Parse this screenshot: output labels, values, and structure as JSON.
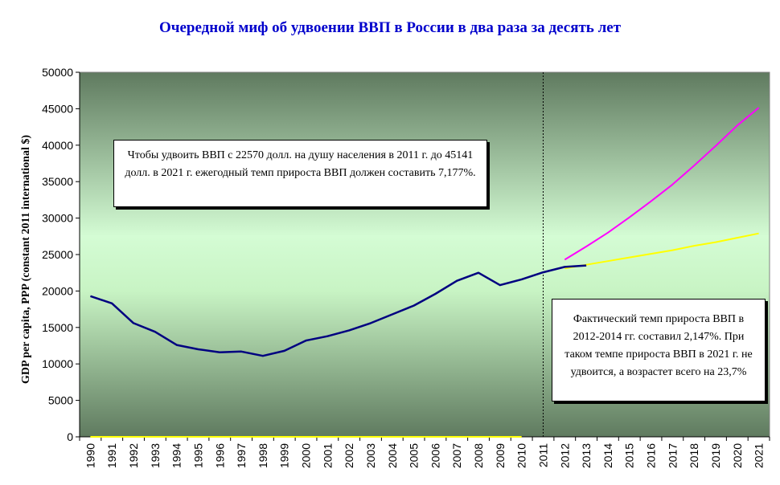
{
  "title": "Очередной миф об удвоении ВВП в России в два раза за десять лет",
  "annotations": {
    "doubling_note": "Чтобы удвоить ВВП  с 22570 долл. на душу населения в 2011 г. до 45141 долл. в 2021 г. ежегодный темп прироста ВВП должен составить 7,177%.",
    "actual_note": "Фактический темп прироста ВВП в 2012-2014 гг. составил 2,147%. При таком темпе прироста ВВП в 2021 г. не удвоится, а возрастет всего на 23,7%"
  },
  "colors": {
    "actual": "#000080",
    "doubling_path": "#ff00ff",
    "actual_rate_path": "#ffff00",
    "marker_line": "#000000"
  },
  "chart_data": {
    "type": "line",
    "title": "Очередной миф об удвоении ВВП в России в два раза за десять лет",
    "ylabel": "GDP per capita, PPP (constant 2011 international $)",
    "xlabel": "",
    "ylim": [
      0,
      50000
    ],
    "yticks": [
      0,
      5000,
      10000,
      15000,
      20000,
      25000,
      30000,
      35000,
      40000,
      45000,
      50000
    ],
    "categories": [
      1990,
      1991,
      1992,
      1993,
      1994,
      1995,
      1996,
      1997,
      1998,
      1999,
      2000,
      2001,
      2002,
      2003,
      2004,
      2005,
      2006,
      2007,
      2008,
      2009,
      2010,
      2011,
      2012,
      2013,
      2014,
      2015,
      2016,
      2017,
      2018,
      2019,
      2020,
      2021
    ],
    "vertical_marker_x": 2011,
    "grid": false,
    "series": [
      {
        "x": [
          1990,
          1991,
          1992,
          1993,
          1994,
          1995,
          1996,
          1997,
          1998,
          1999,
          2000,
          2001,
          2002,
          2003,
          2004,
          2005,
          2006,
          2007,
          2008,
          2009,
          2010,
          2011,
          2012,
          2013
        ],
        "y": [
          19300,
          18300,
          15600,
          14400,
          12600,
          12000,
          11600,
          11700,
          11100,
          11800,
          13200,
          13800,
          14600,
          15600,
          16800,
          18000,
          19600,
          21400,
          22500,
          20800,
          21600,
          22570,
          23300,
          23500
        ]
      },
      {
        "x": [
          2012,
          2013,
          2014,
          2015,
          2016,
          2017,
          2018,
          2019,
          2020,
          2021
        ],
        "y": [
          24300,
          26100,
          28000,
          30100,
          32300,
          34600,
          37200,
          39900,
          42700,
          45141
        ]
      },
      {
        "x": [
          2012,
          2013,
          2014,
          2015,
          2016,
          2017,
          2018,
          2019,
          2020,
          2021
        ],
        "y": [
          23100,
          23600,
          24100,
          24600,
          25100,
          25600,
          26200,
          26700,
          27300,
          27900
        ]
      },
      {
        "x": [
          1990,
          1991,
          1992,
          1993,
          1994,
          1995,
          1996,
          1997,
          1998,
          1999,
          2000,
          2001,
          2002,
          2003,
          2004,
          2005,
          2006,
          2007,
          2008,
          2009,
          2010
        ],
        "y": [
          0,
          0,
          0,
          0,
          0,
          0,
          0,
          0,
          0,
          0,
          0,
          0,
          0,
          0,
          0,
          0,
          0,
          0,
          0,
          0,
          0
        ]
      }
    ]
  }
}
